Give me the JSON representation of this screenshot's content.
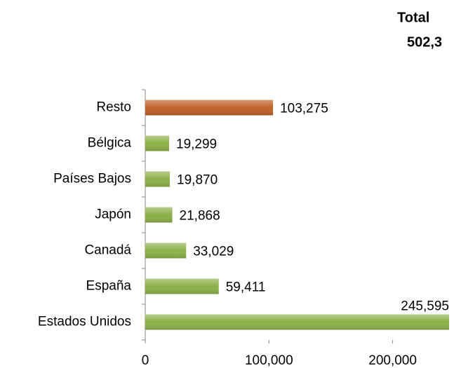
{
  "chart_data": {
    "type": "bar",
    "orientation": "horizontal",
    "title": [
      "Total",
      "502,3"
    ],
    "categories": [
      "Resto",
      "Bélgica",
      "Países Bajos",
      "Japón",
      "Canadá",
      "España",
      "Estados Unidos"
    ],
    "values": [
      103275,
      19299,
      19870,
      21868,
      33029,
      59411,
      245595
    ],
    "value_labels": [
      "103,275",
      "19,299",
      "19,870",
      "21,868",
      "33,029",
      "59,411",
      "245,595"
    ],
    "colors": [
      "#c0622a",
      "#8db049",
      "#8db049",
      "#8db049",
      "#8db049",
      "#8db049",
      "#8db049"
    ],
    "xlim": [
      0,
      249000
    ],
    "xticks": [
      0,
      {
        "value": 100000,
        "label": "100,000"
      },
      {
        "value": 200000,
        "label": "200,000"
      }
    ]
  }
}
